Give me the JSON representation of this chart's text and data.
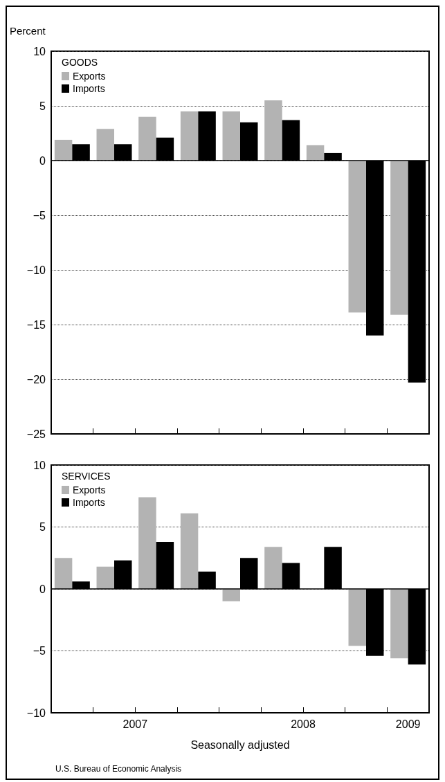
{
  "chart_data": [
    {
      "type": "bar",
      "ylabel": "Percent",
      "legend_title": "GOODS",
      "legend": "top left",
      "grid": "y",
      "tick_labels": "y",
      "x": [
        2007.125,
        2007.375,
        2007.625,
        2007.875,
        2008.125,
        2008.375,
        2008.625,
        2008.875,
        2009.125
      ],
      "xlim": [
        2007,
        2009.25
      ],
      "xticks": [
        {
          "value": 2007.25,
          "label": null
        },
        {
          "value": 2007.5,
          "label": null
        },
        {
          "value": 2007.75,
          "label": null
        },
        {
          "value": 2008,
          "label": null
        },
        {
          "value": 2008.25,
          "label": null
        },
        {
          "value": 2008.5,
          "label": null
        },
        {
          "value": 2008.75,
          "label": null
        },
        {
          "value": 2009,
          "label": null
        }
      ],
      "ylim": [
        -25,
        10
      ],
      "yticks": [
        10,
        5,
        0,
        {
          "value": -5,
          "label": "−5"
        },
        {
          "value": -10,
          "label": "−10"
        },
        {
          "value": -15,
          "label": "−15"
        },
        {
          "value": -20,
          "label": "−20"
        },
        {
          "value": -25,
          "label": "−25"
        }
      ],
      "series": [
        {
          "name": "Exports",
          "color": "#b3b3b3",
          "values": [
            1.9,
            2.9,
            4.0,
            4.5,
            4.5,
            5.5,
            1.4,
            -13.9,
            -14.1
          ]
        },
        {
          "name": "Imports",
          "color": "#000000",
          "values": [
            1.5,
            1.5,
            2.1,
            4.5,
            3.5,
            3.7,
            0.7,
            -16.0,
            -20.3
          ]
        }
      ]
    },
    {
      "type": "bar",
      "legend_title": "SERVICES",
      "legend": "top left",
      "grid": "y",
      "xlabel": "Seasonally adjusted",
      "annotations": [
        "U.S. Bureau of Economic Analysis"
      ],
      "x": [
        2007.125,
        2007.375,
        2007.625,
        2007.875,
        2008.125,
        2008.375,
        2008.625,
        2008.875,
        2009.125
      ],
      "xlim": [
        2007,
        2009.25
      ],
      "xticks": [
        {
          "value": 2007.25,
          "label": null
        },
        {
          "value": 2007.5,
          "label": null
        },
        {
          "value": 2007.75,
          "label": null
        },
        {
          "value": 2008,
          "label": null
        },
        {
          "value": 2008.25,
          "label": null
        },
        {
          "value": 2008.5,
          "label": null
        },
        {
          "value": 2008.75,
          "label": null
        },
        {
          "value": 2009,
          "label": null
        },
        {
          "value": 2007.5,
          "label": "2007"
        },
        {
          "value": 2008.5,
          "label": "2008"
        },
        {
          "value": 2009.125,
          "label": "2009"
        }
      ],
      "ylim": [
        -10,
        10
      ],
      "yticks": [
        10,
        5,
        0,
        {
          "value": -5,
          "label": "−5"
        },
        {
          "value": -10,
          "label": "−10"
        }
      ],
      "series": [
        {
          "name": "Exports",
          "color": "#b3b3b3",
          "values": [
            2.5,
            1.8,
            7.4,
            6.1,
            -1.0,
            3.4,
            0,
            -4.6,
            -5.6
          ]
        },
        {
          "name": "Imports",
          "color": "#000000",
          "values": [
            0.6,
            2.3,
            3.8,
            1.4,
            2.5,
            2.1,
            3.4,
            -5.4,
            -6.1
          ]
        }
      ]
    }
  ]
}
